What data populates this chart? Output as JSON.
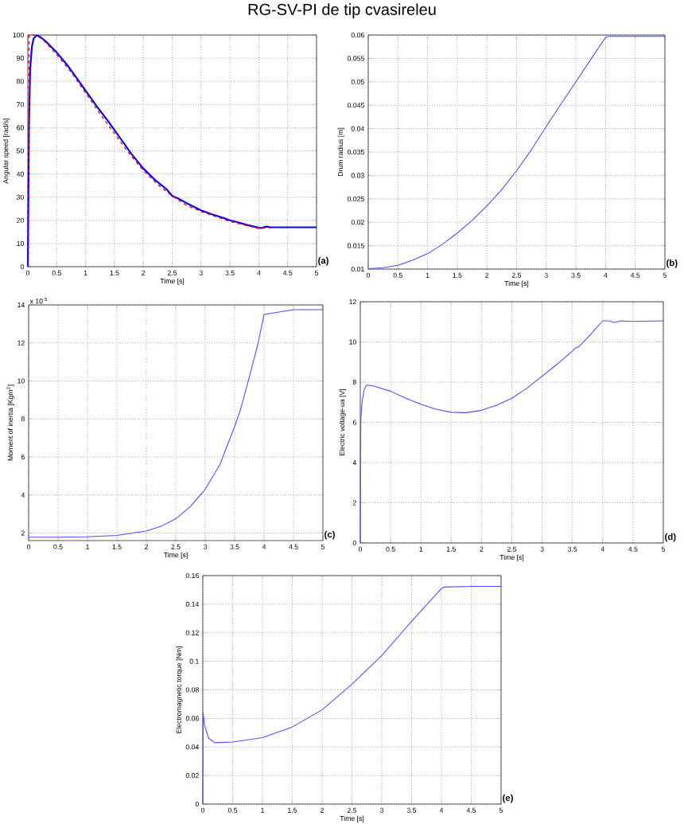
{
  "chart_data": [
    {
      "type": "line",
      "title": "RG-SV-PI de tip cvasireleu",
      "xlabel": "Time [s]",
      "ylabel": "Angular speed [rad/s]",
      "xlim": [
        0,
        5
      ],
      "ylim": [
        0,
        100
      ],
      "xticks": [
        0,
        0.5,
        1,
        1.5,
        2,
        2.5,
        3,
        3.5,
        4,
        4.5,
        5
      ],
      "yticks": [
        0,
        10,
        20,
        30,
        40,
        50,
        60,
        70,
        80,
        90,
        100
      ],
      "grid": true,
      "annotations": [
        "(a)"
      ],
      "series": [
        {
          "color": "#0000ff",
          "line_style": "solid",
          "x": [
            0,
            0.01,
            0.02,
            0.04,
            0.07,
            0.1,
            0.15,
            0.2,
            0.3,
            0.4,
            0.5,
            0.6,
            0.7,
            0.8,
            0.9,
            1.0,
            1.2,
            1.4,
            1.5,
            1.6,
            1.8,
            2.0,
            2.2,
            2.4,
            2.5,
            2.6,
            2.8,
            3.0,
            3.2,
            3.4,
            3.5,
            3.6,
            3.8,
            4.0,
            4.05,
            4.1,
            4.15,
            4.2,
            4.5,
            5
          ],
          "values": [
            0,
            30,
            60,
            85,
            95,
            98.5,
            99.8,
            99.5,
            97.5,
            95,
            92.5,
            89.5,
            86.5,
            83,
            79.5,
            76,
            69,
            62.5,
            59,
            55.5,
            48.5,
            42.4,
            37.5,
            33.5,
            30.6,
            29.5,
            26.8,
            24.3,
            22.5,
            21,
            20,
            19.4,
            18,
            16.8,
            16.7,
            17.2,
            17.3,
            17,
            17,
            17
          ]
        },
        {
          "color": "#ff0000",
          "line_style": "dashed",
          "x": [
            0,
            0.01,
            0.02,
            0.1,
            0.2,
            0.3,
            0.5,
            0.75,
            1,
            1.25,
            1.5,
            1.75,
            2,
            2.25,
            2.5,
            2.75,
            3,
            3.5,
            4,
            4.1,
            4.2
          ],
          "values": [
            0,
            0,
            100,
            100,
            99,
            97,
            91.5,
            84,
            75,
            66,
            57.5,
            49,
            41.5,
            35.5,
            30.5,
            26.5,
            23.8,
            19.5,
            16.5,
            16.8,
            16.8
          ]
        }
      ]
    },
    {
      "type": "line",
      "xlabel": "Time [s]",
      "ylabel": "Drum radius [m]",
      "xlim": [
        0,
        5
      ],
      "ylim": [
        0.01,
        0.06
      ],
      "xticks": [
        0,
        0.5,
        1,
        1.5,
        2,
        2.5,
        3,
        3.5,
        4,
        4.5,
        5
      ],
      "yticks": [
        0.01,
        0.015,
        0.02,
        0.025,
        0.03,
        0.035,
        0.04,
        0.045,
        0.05,
        0.055,
        0.06
      ],
      "grid": true,
      "annotations": [
        "(b)"
      ],
      "series": [
        {
          "color": "#4d4dff",
          "line_style": "solid",
          "x": [
            0,
            0.25,
            0.5,
            0.75,
            1,
            1.25,
            1.5,
            1.75,
            2,
            2.25,
            2.5,
            2.75,
            3,
            3.25,
            3.5,
            3.75,
            4,
            4.05,
            5
          ],
          "values": [
            0.0101,
            0.0103,
            0.0108,
            0.0119,
            0.0133,
            0.0153,
            0.0177,
            0.0204,
            0.0235,
            0.027,
            0.031,
            0.0355,
            0.0405,
            0.0453,
            0.05,
            0.0548,
            0.0595,
            0.0597,
            0.0597
          ]
        }
      ]
    },
    {
      "type": "line",
      "xlabel": "Time [s]",
      "ylabel": "Moment of inertia [Kgm$^{2}$]",
      "xlim": [
        0,
        5
      ],
      "ylim": [
        1.6,
        14
      ],
      "xticks": [
        0,
        0.5,
        1,
        1.5,
        2,
        2.5,
        3,
        3.5,
        4,
        4.5,
        5
      ],
      "yticks": [
        2,
        4,
        6,
        8,
        10,
        12,
        14
      ],
      "grid": true,
      "annotations": [
        "x 10$^{-5}$",
        "(c)"
      ],
      "series": [
        {
          "color": "#4d4dff",
          "line_style": "solid",
          "x": [
            0,
            0.5,
            1,
            1.5,
            2,
            2.25,
            2.5,
            2.75,
            3,
            3.25,
            3.5,
            3.6,
            3.75,
            3.9,
            4,
            4.5,
            5
          ],
          "values": [
            1.78,
            1.78,
            1.8,
            1.87,
            2.1,
            2.35,
            2.75,
            3.4,
            4.3,
            5.6,
            7.6,
            8.5,
            10.2,
            12,
            13.5,
            13.75,
            13.75
          ]
        }
      ]
    },
    {
      "type": "line",
      "xlabel": "Time [s]",
      "ylabel": "Electric voltage-ua [V]",
      "xlim": [
        0,
        5
      ],
      "ylim": [
        0,
        12
      ],
      "xticks": [
        0,
        0.5,
        1,
        1.5,
        2,
        2.5,
        3,
        3.5,
        4,
        4.5,
        5
      ],
      "yticks": [
        0,
        2,
        4,
        6,
        8,
        10,
        12
      ],
      "grid": true,
      "annotations": [
        "(d)"
      ],
      "series": [
        {
          "color": "#4d4dff",
          "line_style": "solid",
          "x": [
            0,
            0.005,
            0.01,
            0.03,
            0.06,
            0.1,
            0.2,
            0.5,
            0.75,
            1,
            1.25,
            1.5,
            1.75,
            2,
            2.25,
            2.5,
            2.75,
            3,
            3.25,
            3.5,
            3.55,
            3.6,
            3.75,
            4,
            4.1,
            4.2,
            4.3,
            4.5,
            5
          ],
          "values": [
            0,
            5,
            6.2,
            7,
            7.6,
            7.85,
            7.82,
            7.55,
            7.2,
            6.9,
            6.65,
            6.5,
            6.48,
            6.6,
            6.85,
            7.2,
            7.7,
            8.3,
            8.9,
            9.55,
            9.7,
            9.75,
            10.2,
            11.05,
            11.05,
            10.97,
            11.05,
            11.02,
            11.05
          ]
        }
      ]
    },
    {
      "type": "line",
      "xlabel": "Time [s]",
      "ylabel": "Electromagnetic torque [Nm]",
      "xlim": [
        0,
        5
      ],
      "ylim": [
        0,
        0.16
      ],
      "xticks": [
        0,
        0.5,
        1,
        1.5,
        2,
        2.5,
        3,
        3.5,
        4,
        4.5,
        5
      ],
      "yticks": [
        0,
        0.02,
        0.04,
        0.06,
        0.08,
        0.1,
        0.12,
        0.14,
        0.16
      ],
      "grid": true,
      "annotations": [
        "(e)"
      ],
      "series": [
        {
          "color": "#4d4dff",
          "line_style": "solid",
          "x": [
            0,
            0.005,
            0.03,
            0.1,
            0.2,
            0.5,
            1,
            1.5,
            2,
            2.5,
            3,
            3.5,
            4,
            4.05,
            4.5,
            5
          ],
          "values": [
            0,
            0.064,
            0.055,
            0.046,
            0.043,
            0.0435,
            0.0465,
            0.054,
            0.066,
            0.084,
            0.104,
            0.128,
            0.151,
            0.152,
            0.1525,
            0.1525
          ]
        }
      ]
    }
  ]
}
